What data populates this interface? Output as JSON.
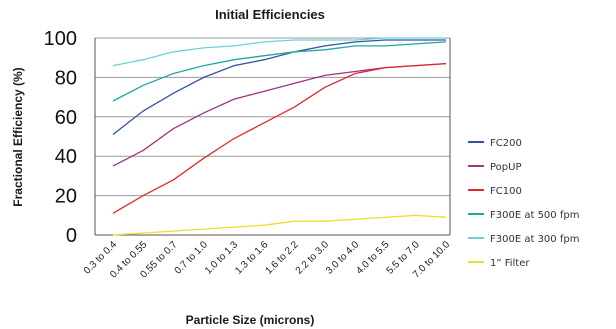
{
  "chart_data": {
    "type": "line",
    "title": "Initial Efficiencies",
    "xlabel": "Particle Size (microns)",
    "ylabel": "Fractional Efficiency (%)",
    "ylim": [
      0,
      100
    ],
    "yticks": [
      0,
      20,
      40,
      60,
      80,
      100
    ],
    "grid": true,
    "legend_position": "right",
    "categories": [
      "0.3 to 0.4",
      "0.4 to 0.55",
      "0.55 to 0.7",
      "0.7 to 1.0",
      "1.0 to 1.3",
      "1.3 to 1.6",
      "1.6 to 2.2",
      "2.2 to 3.0",
      "3.0 to 4.0",
      "4.0 to 5.5",
      "5.5 to 7.0",
      "7.0 to 10.0"
    ],
    "series": [
      {
        "name": "FC200",
        "color": "#3355a0",
        "values": [
          51,
          63,
          72,
          80,
          86,
          89,
          93,
          96,
          98,
          99,
          99,
          99
        ]
      },
      {
        "name": "PopUP",
        "color": "#9a3580",
        "values": [
          35,
          43,
          54,
          62,
          69,
          73,
          77,
          81,
          83,
          85,
          86,
          87
        ]
      },
      {
        "name": "FC100",
        "color": "#e02a2a",
        "values": [
          11,
          20,
          28,
          39,
          49,
          57,
          65,
          75,
          82,
          85,
          86,
          87
        ]
      },
      {
        "name": "F300E at 500 fpm",
        "color": "#1fa8a0",
        "values": [
          68,
          76,
          82,
          86,
          89,
          91,
          93,
          94,
          96,
          96,
          97,
          98
        ]
      },
      {
        "name": "F300E at 300 fpm",
        "color": "#6fd0d8",
        "values": [
          86,
          89,
          93,
          95,
          96,
          98,
          99,
          99,
          99,
          100,
          100,
          100
        ]
      },
      {
        "name": "1” Filter",
        "color": "#e8e030",
        "values": [
          0,
          1,
          2,
          3,
          4,
          5,
          7,
          7,
          8,
          9,
          10,
          9
        ]
      }
    ]
  }
}
